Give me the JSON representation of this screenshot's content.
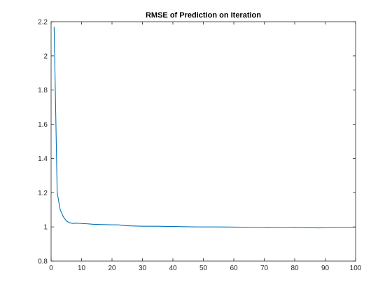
{
  "chart_data": {
    "type": "line",
    "title": "RMSE of Prediction on Iteration",
    "xlabel": "",
    "ylabel": "",
    "xlim": [
      0,
      100
    ],
    "ylim": [
      0.8,
      2.2
    ],
    "x_ticks": [
      0,
      10,
      20,
      30,
      40,
      50,
      60,
      70,
      80,
      90,
      100
    ],
    "y_ticks": [
      0.8,
      1,
      1.2,
      1.4,
      1.6,
      1.8,
      2,
      2.2
    ],
    "grid": false,
    "series": [
      {
        "color": "#0072bd",
        "x": [
          1,
          2,
          3,
          4,
          5,
          6,
          7,
          8,
          9,
          10,
          12,
          14,
          16,
          18,
          20,
          22,
          24,
          26,
          28,
          30,
          32,
          35,
          38,
          40,
          42,
          45,
          48,
          50,
          55,
          60,
          65,
          70,
          75,
          80,
          85,
          88,
          90,
          95,
          100
        ],
        "y": [
          2.17,
          1.2,
          1.1,
          1.06,
          1.035,
          1.025,
          1.02,
          1.022,
          1.021,
          1.02,
          1.018,
          1.015,
          1.014,
          1.013,
          1.012,
          1.012,
          1.008,
          1.006,
          1.005,
          1.004,
          1.004,
          1.004,
          1.003,
          1.003,
          1.002,
          1.001,
          1.0,
          1.0,
          1.0,
          0.999,
          0.998,
          0.997,
          0.996,
          0.997,
          0.995,
          0.994,
          0.996,
          0.997,
          0.998
        ]
      }
    ]
  }
}
